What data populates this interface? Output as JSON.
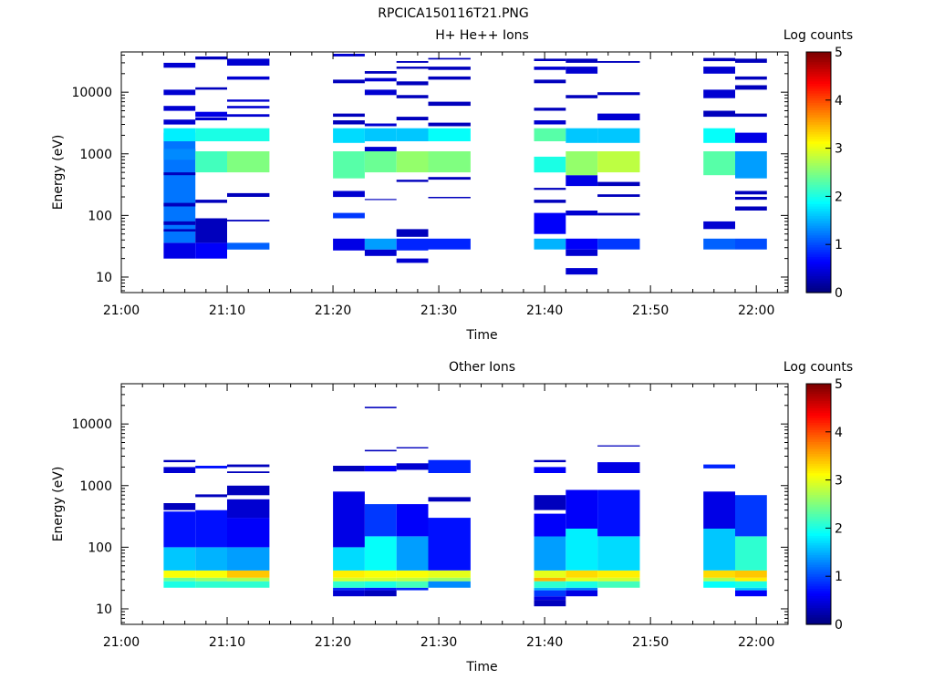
{
  "figure_title": "RPCICA150116T21.PNG",
  "chart_data": [
    {
      "type": "heatmap",
      "title": "H+ He++ Ions",
      "xlabel": "Time",
      "ylabel": "Energy (eV)",
      "x_range": [
        "21:00",
        "22:03"
      ],
      "y_range": [
        5.6,
        45000
      ],
      "y_scale": "log",
      "x_ticks": [
        "21:00",
        "21:10",
        "21:20",
        "21:30",
        "21:40",
        "21:50",
        "22:00"
      ],
      "y_ticks": [
        "10",
        "100",
        "1000",
        "10000"
      ],
      "colorbar": {
        "label": "Log counts",
        "min": 0,
        "max": 5,
        "ticks": [
          "0",
          "1",
          "2",
          "3",
          "4",
          "5"
        ]
      },
      "time_bins": [
        [
          "21:04",
          "21:07"
        ],
        [
          "21:07",
          "21:10"
        ],
        [
          "21:10",
          "21:14"
        ],
        [
          "21:20",
          "21:23"
        ],
        [
          "21:23",
          "21:26"
        ],
        [
          "21:26",
          "21:29"
        ],
        [
          "21:29",
          "21:33"
        ],
        [
          "21:39",
          "21:42"
        ],
        [
          "21:42",
          "21:45"
        ],
        [
          "21:45",
          "21:49"
        ],
        [
          "21:55",
          "21:58"
        ],
        [
          "21:58",
          "22:01"
        ]
      ],
      "cells": [
        [
          0,
          20,
          36,
          0.5
        ],
        [
          0,
          36,
          2200,
          1.2
        ],
        [
          0,
          800,
          1200,
          1.3
        ],
        [
          0,
          1600,
          2600,
          1.8
        ],
        [
          0,
          25000,
          30000,
          0.4
        ],
        [
          0,
          9000,
          11000,
          0.4
        ],
        [
          0,
          5000,
          6000,
          0.4
        ],
        [
          0,
          3000,
          3600,
          0.4
        ],
        [
          0,
          140,
          160,
          0.3
        ],
        [
          0,
          70,
          80,
          0.3
        ],
        [
          0,
          55,
          60,
          0.3
        ],
        [
          0,
          450,
          500,
          0.3
        ],
        [
          1,
          20,
          36,
          0.6
        ],
        [
          1,
          36,
          90,
          0.3
        ],
        [
          1,
          500,
          1100,
          2.2
        ],
        [
          1,
          1600,
          2600,
          2.0
        ],
        [
          1,
          34000,
          38000,
          0.3
        ],
        [
          1,
          11000,
          12000,
          0.3
        ],
        [
          1,
          4000,
          4800,
          0.5
        ],
        [
          1,
          3500,
          3900,
          0.4
        ],
        [
          1,
          160,
          180,
          0.3
        ],
        [
          1,
          55,
          60,
          0.3
        ],
        [
          2,
          28,
          36,
          1.1
        ],
        [
          2,
          500,
          1100,
          2.5
        ],
        [
          2,
          1600,
          2600,
          2.0
        ],
        [
          2,
          27000,
          35000,
          0.4
        ],
        [
          2,
          16000,
          18000,
          0.4
        ],
        [
          2,
          7000,
          7600,
          0.4
        ],
        [
          2,
          5500,
          6000,
          0.4
        ],
        [
          2,
          4000,
          4400,
          0.4
        ],
        [
          2,
          200,
          230,
          0.3
        ],
        [
          2,
          80,
          85,
          0.3
        ],
        [
          3,
          27,
          42,
          0.5
        ],
        [
          3,
          90,
          110,
          0.9
        ],
        [
          3,
          200,
          250,
          0.4
        ],
        [
          3,
          400,
          1100,
          2.3
        ],
        [
          3,
          1500,
          2600,
          1.7
        ],
        [
          3,
          38000,
          42000,
          0.4
        ],
        [
          3,
          14000,
          16000,
          0.3
        ],
        [
          3,
          4000,
          4500,
          0.3
        ],
        [
          3,
          3000,
          3500,
          0.3
        ],
        [
          4,
          22,
          28,
          0.4
        ],
        [
          4,
          28,
          42,
          1.4
        ],
        [
          4,
          180,
          185,
          0.3
        ],
        [
          4,
          500,
          1100,
          2.4
        ],
        [
          4,
          1600,
          2600,
          1.6
        ],
        [
          4,
          1100,
          1300,
          0.4
        ],
        [
          4,
          2800,
          3100,
          0.4
        ],
        [
          4,
          20000,
          22000,
          0.3
        ],
        [
          4,
          15000,
          17000,
          0.4
        ],
        [
          4,
          9000,
          11000,
          0.4
        ],
        [
          5,
          17,
          20,
          0.4
        ],
        [
          5,
          27,
          42,
          0.8
        ],
        [
          5,
          500,
          1100,
          2.6
        ],
        [
          5,
          1600,
          2600,
          1.6
        ],
        [
          5,
          45,
          60,
          0.3
        ],
        [
          5,
          350,
          380,
          0.3
        ],
        [
          5,
          30000,
          32000,
          0.3
        ],
        [
          5,
          24000,
          26000,
          0.3
        ],
        [
          5,
          13000,
          15000,
          0.3
        ],
        [
          5,
          8000,
          9000,
          0.3
        ],
        [
          5,
          3500,
          4000,
          0.3
        ],
        [
          6,
          28,
          42,
          0.8
        ],
        [
          6,
          500,
          1100,
          2.5
        ],
        [
          6,
          1600,
          2600,
          1.9
        ],
        [
          6,
          380,
          420,
          0.3
        ],
        [
          6,
          190,
          200,
          0.3
        ],
        [
          6,
          34000,
          36000,
          0.3
        ],
        [
          6,
          23000,
          26000,
          0.3
        ],
        [
          6,
          16000,
          18000,
          0.3
        ],
        [
          6,
          6000,
          7000,
          0.3
        ],
        [
          6,
          2800,
          3200,
          0.3
        ],
        [
          7,
          28,
          42,
          1.5
        ],
        [
          7,
          50,
          110,
          0.6
        ],
        [
          7,
          160,
          180,
          0.3
        ],
        [
          7,
          260,
          280,
          0.3
        ],
        [
          7,
          500,
          900,
          2.0
        ],
        [
          7,
          1600,
          2600,
          2.3
        ],
        [
          7,
          3000,
          3500,
          0.4
        ],
        [
          7,
          5000,
          5600,
          0.3
        ],
        [
          7,
          14000,
          16000,
          0.3
        ],
        [
          7,
          23000,
          26000,
          0.4
        ],
        [
          7,
          32000,
          35000,
          0.3
        ],
        [
          8,
          11,
          14,
          0.4
        ],
        [
          8,
          22,
          28,
          0.4
        ],
        [
          8,
          28,
          42,
          0.6
        ],
        [
          8,
          100,
          120,
          0.4
        ],
        [
          8,
          300,
          450,
          0.5
        ],
        [
          8,
          450,
          1100,
          2.6
        ],
        [
          8,
          1500,
          2600,
          1.6
        ],
        [
          8,
          8000,
          9000,
          0.3
        ],
        [
          8,
          20000,
          26000,
          0.4
        ],
        [
          8,
          30000,
          35000,
          0.3
        ],
        [
          9,
          28,
          42,
          0.9
        ],
        [
          9,
          100,
          110,
          0.3
        ],
        [
          9,
          200,
          220,
          0.3
        ],
        [
          9,
          300,
          350,
          0.3
        ],
        [
          9,
          500,
          1100,
          2.8
        ],
        [
          9,
          1500,
          2600,
          1.6
        ],
        [
          9,
          3500,
          4500,
          0.4
        ],
        [
          9,
          9000,
          10000,
          0.3
        ],
        [
          9,
          30000,
          32000,
          0.3
        ],
        [
          10,
          28,
          42,
          1.1
        ],
        [
          10,
          60,
          80,
          0.4
        ],
        [
          10,
          450,
          1100,
          2.3
        ],
        [
          10,
          1500,
          2600,
          1.9
        ],
        [
          10,
          4000,
          5000,
          0.3
        ],
        [
          10,
          8000,
          11000,
          0.4
        ],
        [
          10,
          20000,
          26000,
          0.4
        ],
        [
          10,
          32000,
          36000,
          0.3
        ],
        [
          11,
          28,
          42,
          1.0
        ],
        [
          11,
          120,
          140,
          0.3
        ],
        [
          11,
          180,
          200,
          0.3
        ],
        [
          11,
          220,
          250,
          0.3
        ],
        [
          11,
          400,
          1100,
          1.4
        ],
        [
          11,
          1500,
          2200,
          0.5
        ],
        [
          11,
          4000,
          4500,
          0.3
        ],
        [
          11,
          11000,
          13000,
          0.3
        ],
        [
          11,
          16000,
          18000,
          0.3
        ],
        [
          11,
          30000,
          35000,
          0.3
        ]
      ]
    },
    {
      "type": "heatmap",
      "title": "Other Ions",
      "xlabel": "Time",
      "ylabel": "Energy (eV)",
      "x_range": [
        "21:00",
        "22:03"
      ],
      "y_range": [
        5.6,
        45000
      ],
      "y_scale": "log",
      "x_ticks": [
        "21:00",
        "21:10",
        "21:20",
        "21:30",
        "21:40",
        "21:50",
        "22:00"
      ],
      "y_ticks": [
        "10",
        "100",
        "1000",
        "10000"
      ],
      "colorbar": {
        "label": "Log counts",
        "min": 0,
        "max": 5,
        "ticks": [
          "0",
          "1",
          "2",
          "3",
          "4",
          "5"
        ]
      },
      "time_bins": [
        [
          "21:04",
          "21:07"
        ],
        [
          "21:07",
          "21:10"
        ],
        [
          "21:10",
          "21:14"
        ],
        [
          "21:20",
          "21:23"
        ],
        [
          "21:23",
          "21:26"
        ],
        [
          "21:26",
          "21:29"
        ],
        [
          "21:29",
          "21:33"
        ],
        [
          "21:39",
          "21:42"
        ],
        [
          "21:42",
          "21:45"
        ],
        [
          "21:45",
          "21:49"
        ],
        [
          "21:55",
          "21:58"
        ],
        [
          "21:58",
          "22:01"
        ]
      ],
      "cells": [
        [
          0,
          22,
          28,
          2.0
        ],
        [
          0,
          28,
          32,
          2.4
        ],
        [
          0,
          32,
          42,
          3.1
        ],
        [
          0,
          42,
          100,
          1.6
        ],
        [
          0,
          100,
          380,
          0.7
        ],
        [
          0,
          400,
          520,
          0.3
        ],
        [
          0,
          1600,
          2000,
          0.4
        ],
        [
          0,
          2400,
          2600,
          0.3
        ],
        [
          1,
          22,
          28,
          2.1
        ],
        [
          1,
          28,
          32,
          2.6
        ],
        [
          1,
          32,
          42,
          3.1
        ],
        [
          1,
          42,
          100,
          1.5
        ],
        [
          1,
          100,
          400,
          0.7
        ],
        [
          1,
          650,
          720,
          0.3
        ],
        [
          1,
          1900,
          2100,
          0.7
        ],
        [
          2,
          22,
          28,
          2.1
        ],
        [
          2,
          28,
          32,
          2.7
        ],
        [
          2,
          32,
          42,
          3.4
        ],
        [
          2,
          42,
          100,
          1.4
        ],
        [
          2,
          100,
          300,
          0.6
        ],
        [
          2,
          300,
          600,
          0.4
        ],
        [
          2,
          700,
          1000,
          0.3
        ],
        [
          2,
          1600,
          1700,
          0.3
        ],
        [
          2,
          2000,
          2200,
          0.3
        ],
        [
          3,
          16,
          20,
          0.4
        ],
        [
          3,
          20,
          22,
          0.8
        ],
        [
          3,
          22,
          28,
          2.1
        ],
        [
          3,
          28,
          32,
          2.9
        ],
        [
          3,
          32,
          42,
          3.2
        ],
        [
          3,
          42,
          100,
          1.7
        ],
        [
          3,
          100,
          800,
          0.5
        ],
        [
          3,
          1700,
          2100,
          0.3
        ],
        [
          4,
          16,
          20,
          0.3
        ],
        [
          4,
          20,
          22,
          0.7
        ],
        [
          4,
          22,
          28,
          2.0
        ],
        [
          4,
          28,
          32,
          2.9
        ],
        [
          4,
          32,
          42,
          3.1
        ],
        [
          4,
          42,
          150,
          1.9
        ],
        [
          4,
          150,
          500,
          0.9
        ],
        [
          4,
          1700,
          2100,
          0.6
        ],
        [
          4,
          3600,
          3800,
          0.3
        ],
        [
          4,
          18000,
          19000,
          0.3
        ],
        [
          5,
          20,
          22,
          0.8
        ],
        [
          5,
          22,
          28,
          2.2
        ],
        [
          5,
          28,
          32,
          2.8
        ],
        [
          5,
          32,
          42,
          3.1
        ],
        [
          5,
          42,
          150,
          1.4
        ],
        [
          5,
          150,
          500,
          0.6
        ],
        [
          5,
          1800,
          2300,
          0.4
        ],
        [
          5,
          4000,
          4200,
          0.3
        ],
        [
          6,
          22,
          28,
          1.3
        ],
        [
          6,
          28,
          32,
          2.6
        ],
        [
          6,
          32,
          42,
          3.0
        ],
        [
          6,
          42,
          300,
          0.7
        ],
        [
          6,
          550,
          650,
          0.3
        ],
        [
          6,
          1600,
          2600,
          0.8
        ],
        [
          7,
          11,
          14,
          0.3
        ],
        [
          7,
          14,
          16,
          0.5
        ],
        [
          7,
          16,
          20,
          0.9
        ],
        [
          7,
          20,
          22,
          1.5
        ],
        [
          7,
          22,
          28,
          2.1
        ],
        [
          7,
          28,
          32,
          3.5
        ],
        [
          7,
          32,
          42,
          3.0
        ],
        [
          7,
          42,
          150,
          1.4
        ],
        [
          7,
          150,
          350,
          0.6
        ],
        [
          7,
          400,
          700,
          0.3
        ],
        [
          7,
          1600,
          2000,
          0.6
        ],
        [
          7,
          2400,
          2600,
          0.3
        ],
        [
          8,
          16,
          20,
          0.5
        ],
        [
          8,
          20,
          22,
          1.2
        ],
        [
          8,
          22,
          28,
          2.0
        ],
        [
          8,
          28,
          32,
          3.0
        ],
        [
          8,
          32,
          42,
          3.3
        ],
        [
          8,
          42,
          200,
          1.8
        ],
        [
          8,
          200,
          850,
          0.6
        ],
        [
          9,
          22,
          28,
          2.2
        ],
        [
          9,
          28,
          32,
          2.9
        ],
        [
          9,
          32,
          42,
          3.2
        ],
        [
          9,
          42,
          150,
          1.7
        ],
        [
          9,
          150,
          850,
          0.7
        ],
        [
          9,
          1600,
          2400,
          0.5
        ],
        [
          9,
          4300,
          4500,
          0.3
        ],
        [
          10,
          22,
          28,
          1.9
        ],
        [
          10,
          28,
          32,
          2.7
        ],
        [
          10,
          32,
          42,
          3.3
        ],
        [
          10,
          42,
          200,
          1.6
        ],
        [
          10,
          200,
          800,
          0.5
        ],
        [
          10,
          1900,
          2200,
          0.8
        ],
        [
          11,
          16,
          20,
          0.6
        ],
        [
          11,
          20,
          22,
          1.6
        ],
        [
          11,
          22,
          28,
          2.0
        ],
        [
          11,
          28,
          32,
          3.2
        ],
        [
          11,
          32,
          42,
          3.4
        ],
        [
          11,
          42,
          150,
          2.1
        ],
        [
          11,
          150,
          700,
          0.9
        ]
      ]
    }
  ]
}
